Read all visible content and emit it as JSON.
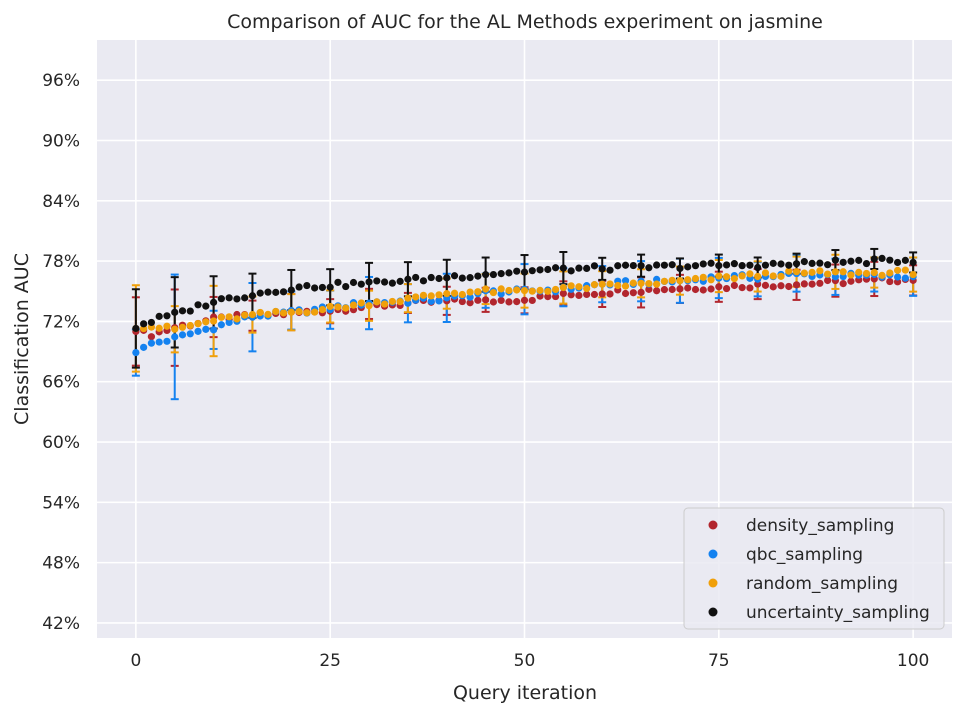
{
  "chart_data": {
    "type": "scatter",
    "title": "Comparison of AUC for the AL Methods experiment on jasmine",
    "xlabel": "Query iteration",
    "ylabel": "Classification AUC",
    "xlim": [
      -5,
      105
    ],
    "ylim": [
      40.5,
      100
    ],
    "xticks": [
      0,
      25,
      50,
      75,
      100
    ],
    "xtick_labels": [
      "0",
      "25",
      "50",
      "75",
      "100"
    ],
    "yticks": [
      42,
      48,
      54,
      60,
      66,
      72,
      78,
      84,
      90,
      96
    ],
    "ytick_labels": [
      "42%",
      "48%",
      "54%",
      "60%",
      "66%",
      "72%",
      "78%",
      "84%",
      "90%",
      "96%"
    ],
    "grid": true,
    "legend_position": "lower-right",
    "error_bar_every": 5,
    "series": [
      {
        "name": "density_sampling",
        "color": "#b2262e",
        "anchors_x": [
          0,
          1,
          2,
          5,
          10,
          15,
          20,
          25,
          30,
          35,
          40,
          45,
          50,
          55,
          60,
          65,
          70,
          75,
          80,
          85,
          90,
          95,
          100
        ],
        "anchors_y": [
          71.0,
          70.9,
          70.7,
          71.4,
          72.2,
          72.6,
          72.8,
          73.1,
          73.5,
          73.8,
          74.0,
          74.0,
          74.2,
          74.6,
          74.9,
          75.1,
          75.3,
          75.4,
          75.6,
          75.7,
          75.9,
          76.1,
          76.2
        ],
        "err": [
          3.4,
          3.8,
          2.0,
          1.5,
          1.8,
          1.2,
          1.5,
          1.0,
          1.4,
          1.2,
          1.3,
          1.2,
          1.3,
          1.5,
          1.4,
          1.5,
          1.5,
          1.5,
          1.6,
          1.7,
          1.5,
          1.5
        ]
      },
      {
        "name": "qbc_sampling",
        "color": "#1482f0",
        "anchors_x": [
          0,
          1,
          2,
          5,
          8,
          10,
          15,
          20,
          25,
          30,
          35,
          40,
          45,
          50,
          55,
          60,
          65,
          70,
          75,
          80,
          85,
          90,
          95,
          100
        ],
        "anchors_y": [
          68.9,
          69.3,
          69.8,
          70.3,
          71.0,
          71.4,
          72.5,
          72.9,
          73.3,
          73.9,
          74.0,
          74.2,
          74.9,
          75.0,
          75.2,
          75.7,
          75.9,
          76.0,
          76.4,
          76.4,
          76.7,
          76.6,
          76.5,
          76.4
        ],
        "err": [
          2.3,
          6.2,
          1.9,
          3.4,
          1.9,
          1.9,
          2.6,
          1.9,
          2.4,
          1.7,
          2.5,
          1.9,
          1.8,
          2.0,
          2.2,
          2.0,
          1.7,
          1.8,
          1.8,
          1.7,
          1.9,
          1.7
        ]
      },
      {
        "name": "random_sampling",
        "color": "#f0a00a",
        "anchors_x": [
          0,
          1,
          2,
          5,
          10,
          15,
          20,
          25,
          30,
          35,
          40,
          45,
          50,
          55,
          60,
          65,
          70,
          75,
          80,
          85,
          90,
          95,
          100
        ],
        "anchors_y": [
          71.3,
          71.5,
          71.5,
          71.2,
          72.1,
          72.6,
          72.9,
          73.3,
          73.8,
          74.2,
          74.8,
          75.0,
          75.0,
          75.3,
          75.5,
          75.7,
          76.0,
          76.3,
          76.6,
          76.8,
          76.8,
          76.8,
          76.9
        ],
        "err": [
          4.3,
          2.3,
          3.5,
          1.8,
          1.8,
          1.6,
          1.5,
          1.4,
          1.5,
          1.5,
          1.7,
          1.6,
          1.3,
          1.4,
          1.4,
          1.6,
          1.5,
          1.5,
          1.7,
          1.5,
          1.7,
          1.5
        ]
      },
      {
        "name": "uncertainty_sampling",
        "color": "#111111",
        "anchors_x": [
          0,
          1,
          2,
          3,
          4,
          5,
          10,
          15,
          20,
          25,
          30,
          35,
          40,
          45,
          50,
          55,
          60,
          65,
          70,
          75,
          80,
          85,
          90,
          95,
          100
        ],
        "anchors_y": [
          71.3,
          71.8,
          72.0,
          72.3,
          72.5,
          72.7,
          74.0,
          74.7,
          75.3,
          75.6,
          75.8,
          76.1,
          76.4,
          76.7,
          77.0,
          77.2,
          77.3,
          77.4,
          77.5,
          77.6,
          77.6,
          77.7,
          77.9,
          78.0,
          78.1
        ],
        "err": [
          3.9,
          3.5,
          2.6,
          2.2,
          2.0,
          1.8,
          1.9,
          1.7,
          1.8,
          1.7,
          1.7,
          1.6,
          1.1,
          1.1,
          1.0,
          1.1,
          1.0,
          1.0,
          1.0,
          1.0,
          1.0,
          1.1
        ]
      }
    ]
  }
}
